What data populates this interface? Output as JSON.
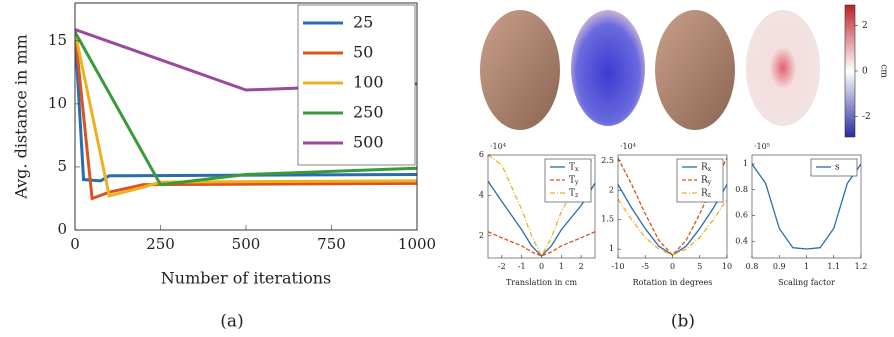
{
  "chart_data": [
    {
      "type": "line",
      "xlabel": "Number of iterations",
      "ylabel": "Avg. distance in mm",
      "xlim": [
        0,
        1000
      ],
      "xticks": [
        0,
        250,
        500,
        750,
        1000
      ],
      "ylim": [
        0,
        18
      ],
      "yticks": [
        0,
        5,
        10,
        15
      ],
      "legend": "top-right",
      "series": [
        {
          "name": "25",
          "color": "#2b6cb0",
          "style": "solid",
          "x": [
            0,
            25,
            75,
            100,
            1000
          ],
          "values": [
            15.7,
            4.0,
            3.9,
            4.3,
            4.4
          ]
        },
        {
          "name": "50",
          "color": "#d9541e",
          "style": "solid",
          "x": [
            0,
            50,
            100,
            200,
            1000
          ],
          "values": [
            15.7,
            2.5,
            3.0,
            3.6,
            3.7
          ]
        },
        {
          "name": "100",
          "color": "#edb120",
          "style": "solid",
          "x": [
            0,
            100,
            200,
            250,
            1000
          ],
          "values": [
            15.7,
            2.7,
            3.4,
            3.8,
            3.9
          ]
        },
        {
          "name": "250",
          "color": "#3a9a3a",
          "style": "solid",
          "x": [
            0,
            250,
            500,
            1000
          ],
          "values": [
            15.7,
            3.6,
            4.4,
            4.9
          ]
        },
        {
          "name": "500",
          "color": "#9b4a9b",
          "style": "solid",
          "x": [
            0,
            500,
            1000
          ],
          "values": [
            15.9,
            11.1,
            11.6
          ]
        }
      ]
    },
    {
      "type": "line",
      "xlabel": "Translation in cm",
      "y_multiplier": "·10⁴",
      "xlim": [
        -2.7,
        2.7
      ],
      "xticks": [
        -2,
        -1,
        0,
        1,
        2
      ],
      "ylim": [
        0.9,
        6.0
      ],
      "yticks": [
        2,
        4,
        6
      ],
      "legend": "top-right",
      "series": [
        {
          "name": "Tx",
          "color": "#2b6cb0",
          "style": "solid",
          "x": [
            -2.7,
            -2,
            -1,
            -0.5,
            0,
            0.5,
            1,
            2,
            2.7
          ],
          "values": [
            4.7,
            3.7,
            2.3,
            1.5,
            1.0,
            1.5,
            2.3,
            3.5,
            4.6
          ]
        },
        {
          "name": "Ty",
          "color": "#d9541e",
          "style": "dashed",
          "x": [
            -2.7,
            -2,
            -1,
            -0.5,
            0,
            0.5,
            1,
            2,
            2.7
          ],
          "values": [
            2.2,
            1.9,
            1.5,
            1.2,
            1.0,
            1.2,
            1.5,
            1.9,
            2.2
          ]
        },
        {
          "name": "Tz",
          "color": "#edb120",
          "style": "dashdot",
          "x": [
            -2.7,
            -2,
            -1,
            -0.5,
            0,
            0.5,
            1,
            2,
            2.7
          ],
          "values": [
            6.0,
            5.5,
            3.3,
            2.0,
            1.0,
            1.9,
            3.2,
            5.0,
            6.0
          ]
        }
      ]
    },
    {
      "type": "line",
      "xlabel": "Rotation in degrees",
      "y_multiplier": "·10⁴",
      "xlim": [
        -10,
        10
      ],
      "xticks": [
        -10,
        -5,
        0,
        5,
        10
      ],
      "ylim": [
        0.85,
        2.6
      ],
      "yticks": [
        1,
        1.5,
        2,
        2.5
      ],
      "legend": "top-right",
      "series": [
        {
          "name": "Rx",
          "color": "#2b6cb0",
          "style": "solid",
          "x": [
            -10,
            -7.5,
            -5,
            -2.5,
            0,
            2.5,
            5,
            7.5,
            10
          ],
          "values": [
            2.1,
            1.7,
            1.35,
            1.05,
            0.9,
            1.05,
            1.35,
            1.7,
            2.1
          ]
        },
        {
          "name": "Ry",
          "color": "#d9541e",
          "style": "dashed",
          "x": [
            -10,
            -7.5,
            -5,
            -2.5,
            0,
            2.5,
            5,
            7.5,
            10
          ],
          "values": [
            2.55,
            2.1,
            1.6,
            1.15,
            0.9,
            1.15,
            1.6,
            2.1,
            2.55
          ]
        },
        {
          "name": "Rz",
          "color": "#edb120",
          "style": "dashdot",
          "x": [
            -10,
            -7.5,
            -5,
            -2.5,
            0,
            2.5,
            5,
            7.5,
            10
          ],
          "values": [
            1.85,
            1.5,
            1.2,
            1.0,
            0.9,
            1.0,
            1.2,
            1.5,
            1.85
          ]
        }
      ]
    },
    {
      "type": "line",
      "xlabel": "Scaling factor",
      "y_multiplier": "·10⁵",
      "xlim": [
        0.8,
        1.2
      ],
      "xticks": [
        0.8,
        0.9,
        1,
        1.1,
        1.2
      ],
      "ylim": [
        0.27,
        1.07
      ],
      "yticks": [
        0.4,
        0.6,
        0.8,
        1
      ],
      "legend": "top-right",
      "series": [
        {
          "name": "s",
          "color": "#2b6cb0",
          "style": "solid",
          "x": [
            0.8,
            0.85,
            0.9,
            0.95,
            1.0,
            1.05,
            1.1,
            1.15,
            1.2
          ],
          "values": [
            1.0,
            0.85,
            0.5,
            0.35,
            0.34,
            0.35,
            0.5,
            0.85,
            1.0
          ]
        }
      ]
    }
  ],
  "colorbar": {
    "label": "cm",
    "lim": [
      -2.9,
      2.9
    ],
    "ticks": [
      2,
      0,
      -2
    ]
  },
  "captions": [
    "(a)",
    "(b)"
  ]
}
